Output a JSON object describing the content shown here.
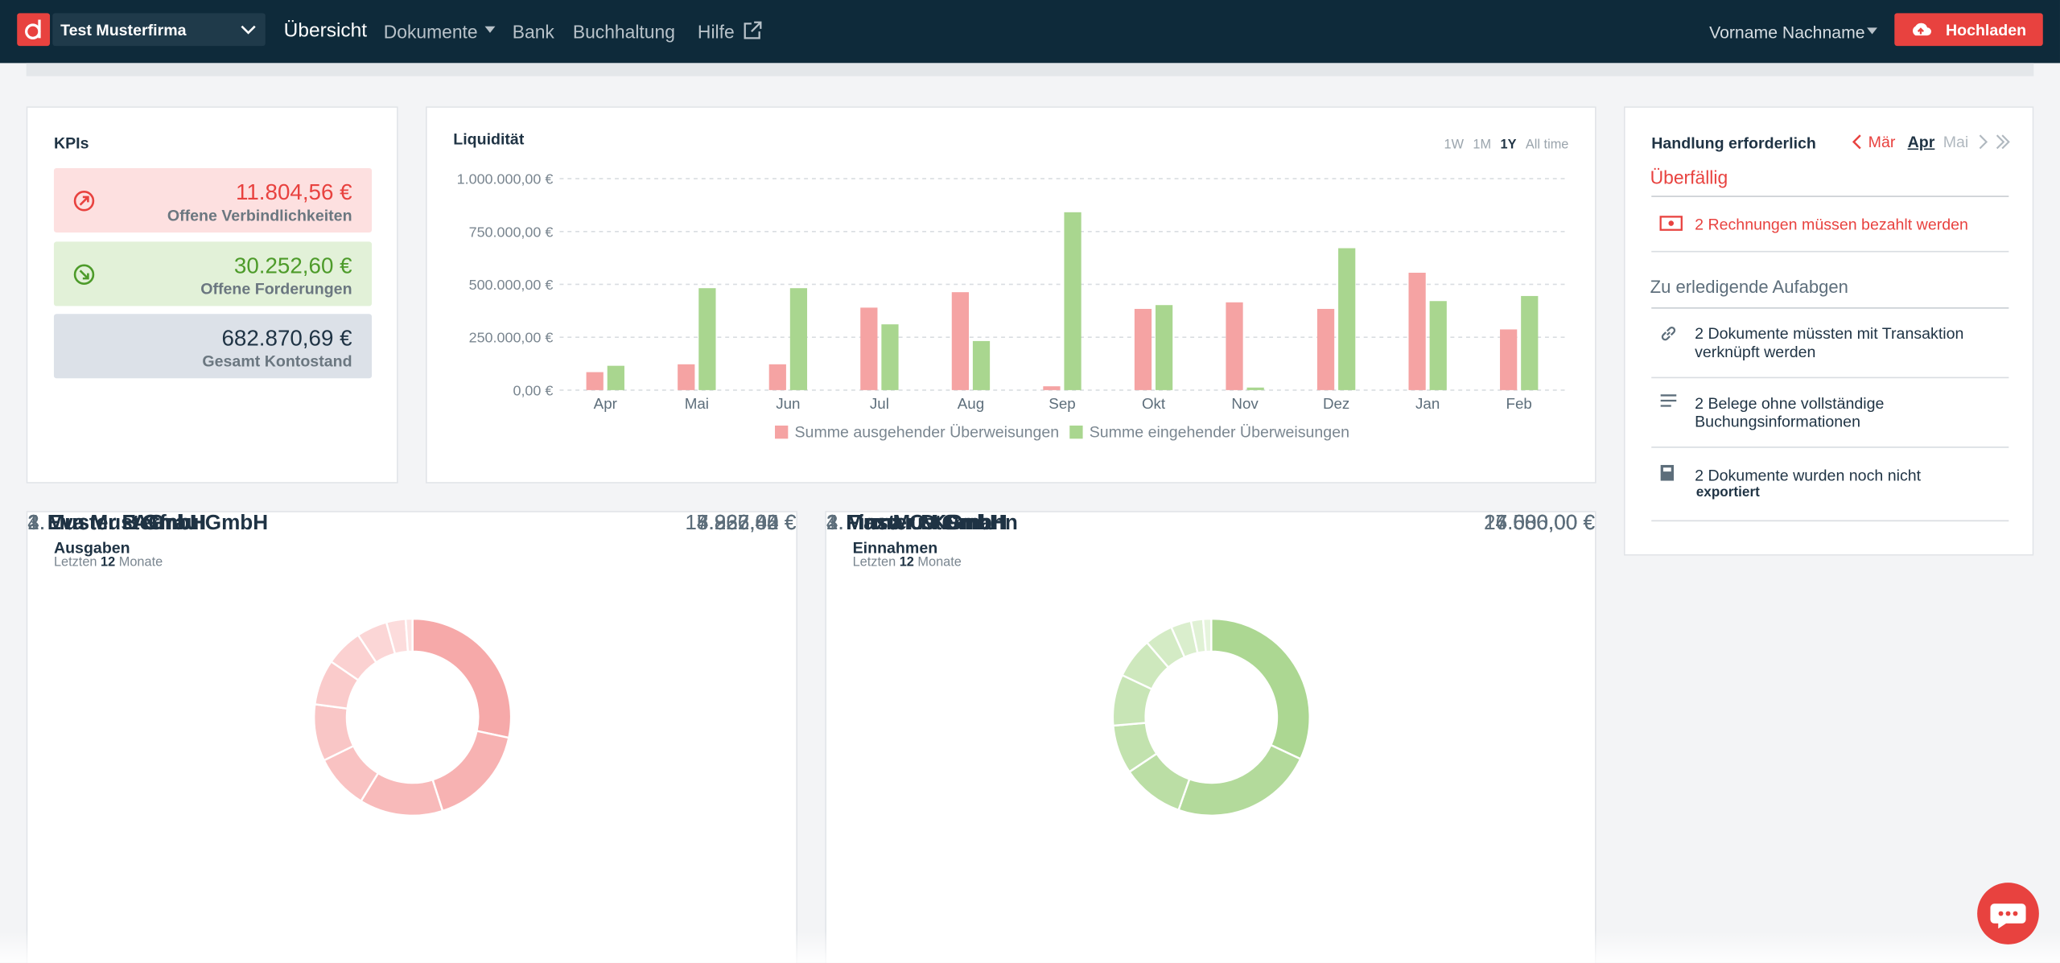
{
  "nav": {
    "company": "Test Musterfirma",
    "items": [
      "Übersicht",
      "Dokumente",
      "Bank",
      "Buchhaltung",
      "Hilfe"
    ],
    "user": "Vorname Nachname",
    "upload": "Hochladen"
  },
  "kpis": {
    "title": "KPIs",
    "cards": [
      {
        "amount": "11.804,56 €",
        "label": "Offene Verbindlichkeiten"
      },
      {
        "amount": "30.252,60 €",
        "label": "Offene Forderungen"
      },
      {
        "amount": "682.870,69 €",
        "label": "Gesamt Kontostand"
      }
    ]
  },
  "actions": {
    "title": "Handlung erforderlich",
    "months": [
      "Mär",
      "Apr",
      "Mai"
    ],
    "overdue_title": "Überfällig",
    "overdue": [
      "2 Rechnungen müssen bezahlt werden"
    ],
    "todo_title": "Zu erledigende Aufabgen",
    "todo": [
      "2 Dokumente müssten mit Transaktion verknüpft werden",
      "2 Belege ohne vollständige Buchungsinformationen",
      "2 Dokumente wurden noch nicht"
    ],
    "todo_detail": "exportiert"
  },
  "chart_data": [
    {
      "type": "bar",
      "title": "Liquidität",
      "ranges": [
        "1W",
        "1M",
        "1Y",
        "All time"
      ],
      "active_range": 2,
      "categories": [
        "Apr",
        "Mai",
        "Jun",
        "Jul",
        "Aug",
        "Sep",
        "Okt",
        "Nov",
        "Dez",
        "Jan",
        "Feb"
      ],
      "series": [
        {
          "name": "Summe ausgehender Überweisungen",
          "color": "#f5a3a3",
          "values": [
            85000,
            122000,
            122000,
            390000,
            463000,
            18000,
            384000,
            415000,
            384000,
            555000,
            287000
          ]
        },
        {
          "name": "Summe eingehender Überweisungen",
          "color": "#a9d68f",
          "values": [
            115000,
            482000,
            482000,
            311000,
            232000,
            841000,
            402000,
            12000,
            671000,
            421000,
            445000
          ]
        }
      ],
      "ylim": [
        0,
        1000000
      ],
      "yticks": [
        {
          "value": 0,
          "label": "0,00 €"
        },
        {
          "value": 250000,
          "label": "250.000,00 €"
        },
        {
          "value": 500000,
          "label": "500.000,00 €"
        },
        {
          "value": 750000,
          "label": "750.000,00 €"
        },
        {
          "value": 1000000,
          "label": "1.000.000,00 €"
        }
      ],
      "grid": true,
      "legend": "bottom"
    },
    {
      "type": "donut",
      "title": "Ausgaben",
      "subtitle": [
        "Letzten",
        "12",
        "Monate"
      ],
      "rank_labels": [
        "1.",
        "2.",
        "3.",
        "4."
      ],
      "categories": [
        "Muster B GmbH",
        "Eva Musterfrau GmbH",
        "Muster I AG",
        "Muster E GmbH",
        null,
        null,
        null,
        null,
        null,
        null
      ],
      "values": [
        15226.85,
        8966.0,
        7362.02,
        4837.44,
        5000,
        4000,
        3300,
        2700,
        1700,
        600
      ],
      "value_labels": [
        "15.226,85 €",
        "8.966,00 €",
        "7.362,02 €",
        "4.837,44 €",
        null,
        null,
        null,
        null,
        null,
        null
      ],
      "colors": [
        "#f6a9a9",
        "#f7b2b2",
        "#f8baba",
        "#f9c2c2",
        "#f9c6c6",
        "#facbcb",
        "#fbd1d1",
        "#fbd6d6",
        "#fcdcdc",
        "#fde4e4"
      ]
    },
    {
      "type": "donut",
      "title": "Einnahmen",
      "subtitle": [
        "Letzten",
        "12",
        "Monate"
      ],
      "rank_labels": [
        "1.",
        "2.",
        "3.",
        "4."
      ],
      "categories": [
        "Muster D GmbH",
        "Muster M GmbH",
        "Firma O KG",
        "Max Mustermann",
        null,
        null,
        null,
        null,
        null,
        null
      ],
      "values": [
        24000.0,
        17586.0,
        7680.0,
        6000.0,
        6300,
        5000,
        3500,
        2500,
        1500,
        1000
      ],
      "value_labels": [
        "24.000,00 €",
        "17.586,00 €",
        "7.680,00 €",
        "6.000,00 €",
        null,
        null,
        null,
        null,
        null,
        null
      ],
      "colors": [
        "#acd792",
        "#b3da9b",
        "#bbdea5",
        "#c2e2ae",
        "#c8e5b6",
        "#cee8bd",
        "#d4ebc5",
        "#daeecd",
        "#e0f1d5",
        "#e6f4dd"
      ]
    }
  ]
}
